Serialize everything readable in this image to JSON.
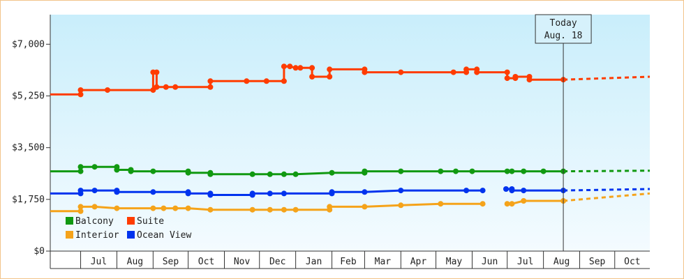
{
  "chart_data": {
    "type": "line",
    "title": "",
    "xlabel": "",
    "ylabel": "",
    "ylim": [
      0,
      8000
    ],
    "yticks": [
      "$0",
      "$1,750",
      "$3,500",
      "$5,250",
      "$7,000"
    ],
    "ytick_values": [
      0,
      1750,
      3500,
      5250,
      7000
    ],
    "xlim": [
      "2024-06-05",
      "2025-10-31"
    ],
    "months": [
      {
        "label": "Jul",
        "start": "2024-07-01",
        "end": "2024-08-01"
      },
      {
        "label": "Aug",
        "start": "2024-08-01",
        "end": "2024-09-01"
      },
      {
        "label": "Sep",
        "start": "2024-09-01",
        "end": "2024-10-01"
      },
      {
        "label": "Oct",
        "start": "2024-10-01",
        "end": "2024-11-01"
      },
      {
        "label": "Nov",
        "start": "2024-11-01",
        "end": "2024-12-01"
      },
      {
        "label": "Dec",
        "start": "2024-12-01",
        "end": "2025-01-01"
      },
      {
        "label": "Jan",
        "start": "2025-01-01",
        "end": "2025-02-01"
      },
      {
        "label": "Feb",
        "start": "2025-02-01",
        "end": "2025-03-01"
      },
      {
        "label": "Mar",
        "start": "2025-03-01",
        "end": "2025-04-01"
      },
      {
        "label": "Apr",
        "start": "2025-04-01",
        "end": "2025-05-01"
      },
      {
        "label": "May",
        "start": "2025-05-01",
        "end": "2025-06-01"
      },
      {
        "label": "Jun",
        "start": "2025-06-01",
        "end": "2025-07-01"
      },
      {
        "label": "Jul",
        "start": "2025-07-01",
        "end": "2025-08-01"
      },
      {
        "label": "Aug",
        "start": "2025-08-01",
        "end": "2025-09-01"
      },
      {
        "label": "Sep",
        "start": "2025-09-01",
        "end": "2025-10-01"
      },
      {
        "label": "Oct",
        "start": "2025-10-01",
        "end": "2025-11-01"
      }
    ],
    "today": {
      "line1": "Today",
      "line2": "Aug. 18",
      "date": "2025-08-18"
    },
    "legend_position": "bottom-left",
    "series": [
      {
        "name": "Suite",
        "color": "#ff3c00",
        "points": [
          [
            "2024-06-05",
            5300
          ],
          [
            "2024-07-01",
            5300
          ],
          [
            "2024-07-01",
            5450
          ],
          [
            "2024-07-24",
            5450
          ],
          [
            "2024-09-01",
            5450
          ],
          [
            "2024-09-01",
            6050
          ],
          [
            "2024-09-04",
            6050
          ],
          [
            "2024-09-04",
            5550
          ],
          [
            "2024-09-12",
            5550
          ],
          [
            "2024-09-20",
            5550
          ],
          [
            "2024-10-20",
            5550
          ],
          [
            "2024-10-20",
            5750
          ],
          [
            "2024-11-20",
            5750
          ],
          [
            "2024-12-07",
            5750
          ],
          [
            "2024-12-22",
            5750
          ],
          [
            "2024-12-22",
            6250
          ],
          [
            "2024-12-27",
            6250
          ],
          [
            "2025-01-01",
            6200
          ],
          [
            "2025-01-05",
            6200
          ],
          [
            "2025-01-15",
            6200
          ],
          [
            "2025-01-15",
            5900
          ],
          [
            "2025-01-30",
            5900
          ],
          [
            "2025-01-30",
            6150
          ],
          [
            "2025-03-01",
            6150
          ],
          [
            "2025-03-01",
            6050
          ],
          [
            "2025-04-01",
            6050
          ],
          [
            "2025-05-16",
            6050
          ],
          [
            "2025-05-27",
            6050
          ],
          [
            "2025-05-27",
            6150
          ],
          [
            "2025-06-05",
            6150
          ],
          [
            "2025-06-05",
            6050
          ],
          [
            "2025-07-01",
            6050
          ],
          [
            "2025-07-01",
            5850
          ],
          [
            "2025-07-08",
            5850
          ],
          [
            "2025-07-08",
            5900
          ],
          [
            "2025-07-20",
            5900
          ],
          [
            "2025-07-20",
            5800
          ],
          [
            "2025-08-18",
            5800
          ]
        ],
        "forecast": [
          [
            "2025-08-18",
            5800
          ],
          [
            "2025-10-31",
            5900
          ]
        ]
      },
      {
        "name": "Balcony",
        "color": "#119911",
        "points": [
          [
            "2024-06-05",
            2700
          ],
          [
            "2024-07-01",
            2700
          ],
          [
            "2024-07-01",
            2850
          ],
          [
            "2024-07-13",
            2850
          ],
          [
            "2024-08-01",
            2850
          ],
          [
            "2024-08-01",
            2750
          ],
          [
            "2024-08-13",
            2750
          ],
          [
            "2024-08-13",
            2700
          ],
          [
            "2024-09-01",
            2700
          ],
          [
            "2024-10-01",
            2700
          ],
          [
            "2024-10-01",
            2650
          ],
          [
            "2024-10-20",
            2650
          ],
          [
            "2024-10-20",
            2600
          ],
          [
            "2024-11-25",
            2600
          ],
          [
            "2024-12-10",
            2600
          ],
          [
            "2024-12-22",
            2600
          ],
          [
            "2025-01-01",
            2600
          ],
          [
            "2025-02-01",
            2650
          ],
          [
            "2025-03-01",
            2650
          ],
          [
            "2025-03-01",
            2700
          ],
          [
            "2025-04-01",
            2700
          ],
          [
            "2025-05-05",
            2700
          ],
          [
            "2025-05-18",
            2700
          ],
          [
            "2025-06-01",
            2700
          ],
          [
            "2025-07-01",
            2700
          ],
          [
            "2025-07-05",
            2700
          ],
          [
            "2025-07-15",
            2700
          ],
          [
            "2025-08-01",
            2700
          ],
          [
            "2025-08-18",
            2700
          ]
        ],
        "forecast": [
          [
            "2025-08-18",
            2700
          ],
          [
            "2025-10-31",
            2720
          ]
        ]
      },
      {
        "name": "Ocean View",
        "color": "#0033ee",
        "points": [
          [
            "2024-06-05",
            1950
          ],
          [
            "2024-07-01",
            1950
          ],
          [
            "2024-07-01",
            2050
          ],
          [
            "2024-07-13",
            2050
          ],
          [
            "2024-08-01",
            2050
          ],
          [
            "2024-08-01",
            2000
          ],
          [
            "2024-09-01",
            2000
          ],
          [
            "2024-10-01",
            2000
          ],
          [
            "2024-10-01",
            1950
          ],
          [
            "2024-10-20",
            1950
          ],
          [
            "2024-10-20",
            1900
          ],
          [
            "2024-11-25",
            1900
          ],
          [
            "2024-11-25",
            1950
          ],
          [
            "2024-12-10",
            1950
          ],
          [
            "2024-12-22",
            1950
          ],
          [
            "2025-02-01",
            1950
          ],
          [
            "2025-02-01",
            2000
          ],
          [
            "2025-03-01",
            2000
          ],
          [
            "2025-04-01",
            2050
          ],
          [
            "2025-05-27",
            2050
          ],
          [
            "2025-06-10",
            2050
          ]
        ],
        "points2": [
          [
            "2025-06-30",
            2100
          ],
          [
            "2025-07-05",
            2100
          ],
          [
            "2025-07-05",
            2050
          ],
          [
            "2025-07-15",
            2050
          ],
          [
            "2025-08-18",
            2050
          ]
        ],
        "forecast": [
          [
            "2025-08-18",
            2050
          ],
          [
            "2025-10-31",
            2100
          ]
        ]
      },
      {
        "name": "Interior",
        "color": "#f5a31a",
        "points": [
          [
            "2024-06-05",
            1350
          ],
          [
            "2024-07-01",
            1350
          ],
          [
            "2024-07-01",
            1500
          ],
          [
            "2024-07-13",
            1500
          ],
          [
            "2024-08-01",
            1450
          ],
          [
            "2024-09-01",
            1450
          ],
          [
            "2024-09-10",
            1450
          ],
          [
            "2024-09-20",
            1450
          ],
          [
            "2024-10-01",
            1450
          ],
          [
            "2024-10-20",
            1400
          ],
          [
            "2024-11-25",
            1400
          ],
          [
            "2024-12-10",
            1400
          ],
          [
            "2024-12-22",
            1400
          ],
          [
            "2025-01-01",
            1400
          ],
          [
            "2025-01-30",
            1400
          ],
          [
            "2025-01-30",
            1500
          ],
          [
            "2025-03-01",
            1500
          ],
          [
            "2025-04-01",
            1550
          ],
          [
            "2025-05-05",
            1600
          ],
          [
            "2025-06-10",
            1600
          ]
        ],
        "points2": [
          [
            "2025-07-01",
            1600
          ],
          [
            "2025-07-05",
            1600
          ],
          [
            "2025-07-15",
            1700
          ],
          [
            "2025-08-18",
            1700
          ]
        ],
        "forecast": [
          [
            "2025-08-18",
            1700
          ],
          [
            "2025-10-31",
            1950
          ]
        ]
      }
    ],
    "legend": [
      {
        "name": "Balcony",
        "color": "#119911"
      },
      {
        "name": "Suite",
        "color": "#ff3c00"
      },
      {
        "name": "Interior",
        "color": "#f5a31a"
      },
      {
        "name": "Ocean View",
        "color": "#0033ee"
      }
    ]
  }
}
